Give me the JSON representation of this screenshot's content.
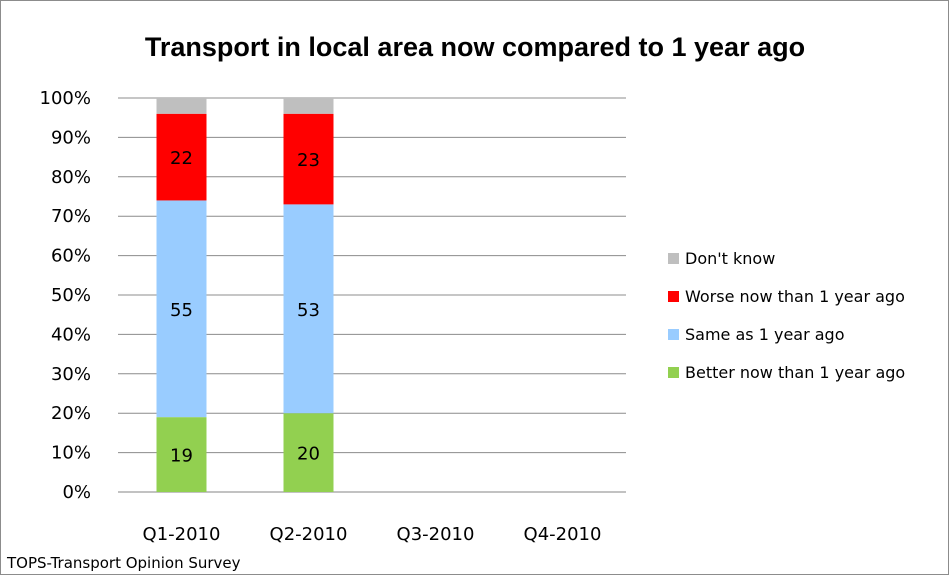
{
  "chart_data": {
    "type": "bar",
    "stacked": true,
    "title": "Transport in local area now compared to 1 year ago",
    "categories": [
      "Q1-2010",
      "Q2-2010",
      "Q3-2010",
      "Q4-2010"
    ],
    "series": [
      {
        "name": "Better now than 1 year ago",
        "color": "#92d050",
        "values": [
          19,
          20,
          null,
          null
        ],
        "labels": [
          "19",
          "20",
          "",
          ""
        ]
      },
      {
        "name": "Same as 1 year ago",
        "color": "#99ccff",
        "values": [
          55,
          53,
          null,
          null
        ],
        "labels": [
          "55",
          "53",
          "",
          ""
        ]
      },
      {
        "name": "Worse now than 1 year ago",
        "color": "#ff0000",
        "values": [
          22,
          23,
          null,
          null
        ],
        "labels": [
          "22",
          "23",
          "",
          ""
        ]
      },
      {
        "name": "Don't know",
        "color": "#bfbfbf",
        "values": [
          4,
          4,
          null,
          null
        ],
        "labels": [
          "",
          "",
          "",
          ""
        ]
      }
    ],
    "ylim": [
      0,
      100
    ],
    "yticks": [
      "0%",
      "10%",
      "20%",
      "30%",
      "40%",
      "50%",
      "60%",
      "70%",
      "80%",
      "90%",
      "100%"
    ],
    "grid": true,
    "legend_position": "right",
    "legend_order": [
      "Don't know",
      "Worse now than 1 year ago",
      "Same as 1 year ago",
      "Better now than 1 year ago"
    ]
  },
  "source_note": "TOPS-Transport Opinion Survey"
}
